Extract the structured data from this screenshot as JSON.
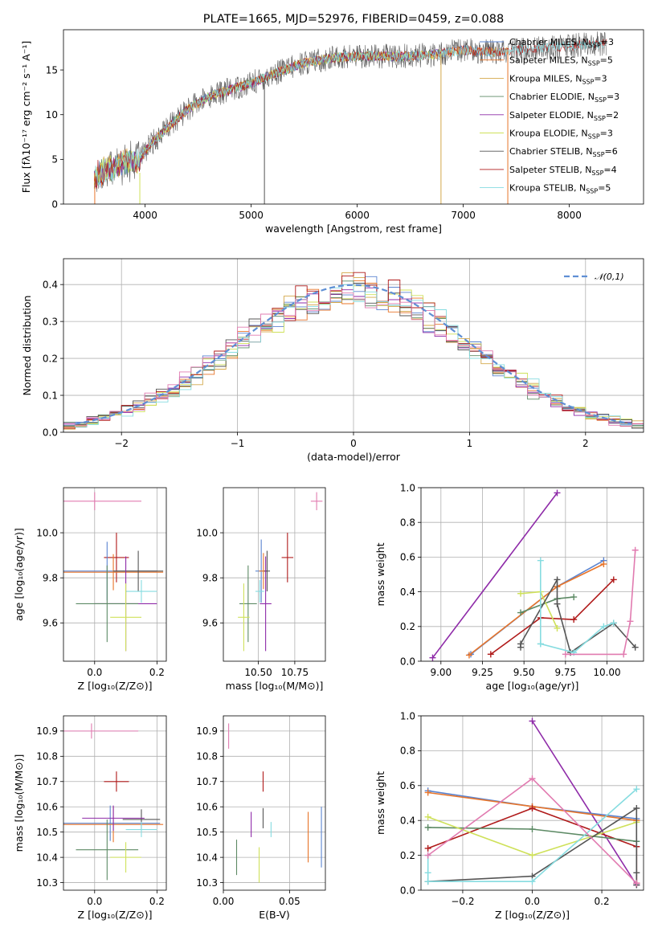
{
  "title": "PLATE=1665, MJD=52976, FIBERID=0459, z=0.088",
  "colors": {
    "Chabrier MILES": "#5b84d0",
    "Salpeter MILES": "#e8752a",
    "Kroupa MILES": "#d4a84a",
    "Chabrier ELODIE": "#5d8a65",
    "Salpeter ELODIE": "#8e2aa8",
    "Kroupa ELODIE": "#cfe15a",
    "Chabrier STELIB": "#555555",
    "Salpeter STELIB": "#b01a1a",
    "Kroupa STELIB": "#86dce0",
    "extra": "#e17bb0"
  },
  "chart_data": [
    {
      "id": "spectrum",
      "type": "line",
      "xlabel": "wavelength [Angstrom, rest frame]",
      "ylabel": "Flux [fλ10⁻¹⁷ erg cm⁻² s⁻¹ A⁻¹]",
      "xlim": [
        3230,
        8700
      ],
      "ylim": [
        0,
        19.5
      ],
      "xticks": [
        "4000",
        "5000",
        "6000",
        "7000",
        "8000"
      ],
      "xtick_values": [
        4000,
        5000,
        6000,
        7000,
        8000
      ],
      "yticks": [
        "0",
        "5",
        "10",
        "15"
      ],
      "ytick_values": [
        0,
        5,
        10,
        15
      ],
      "legend": "top-right",
      "continuum": [
        [
          3520,
          3.0
        ],
        [
          3650,
          4.0
        ],
        [
          3800,
          4.6
        ],
        [
          3950,
          5.1
        ],
        [
          4050,
          6.7
        ],
        [
          4200,
          8.4
        ],
        [
          4400,
          10.6
        ],
        [
          4600,
          12.0
        ],
        [
          4800,
          12.8
        ],
        [
          5000,
          13.5
        ],
        [
          5200,
          14.5
        ],
        [
          5500,
          15.8
        ],
        [
          5800,
          16.4
        ],
        [
          6100,
          16.6
        ],
        [
          6400,
          16.5
        ],
        [
          6700,
          16.7
        ],
        [
          7000,
          17.2
        ],
        [
          7300,
          17.0
        ],
        [
          7600,
          17.3
        ],
        [
          7900,
          17.6
        ],
        [
          8200,
          17.9
        ],
        [
          8350,
          18.0
        ]
      ],
      "models": [
        {
          "name": "Chabrier MILES",
          "label": "Chabrier MILES, N",
          "sub": "SSP",
          "count": "=3",
          "x_max": 7420
        },
        {
          "name": "Salpeter MILES",
          "label": "Salpeter MILES, N",
          "sub": "SSP",
          "count": "=5",
          "x_max": 7420
        },
        {
          "name": "Kroupa MILES",
          "label": "Kroupa MILES, N",
          "sub": "SSP",
          "count": "=3",
          "x_max": 7420
        },
        {
          "name": "Chabrier ELODIE",
          "label": "Chabrier ELODIE, N",
          "sub": "SSP",
          "count": "=3",
          "x_max": 6800
        },
        {
          "name": "Salpeter ELODIE",
          "label": "Salpeter ELODIE, N",
          "sub": "SSP",
          "count": "=2",
          "x_max": 6800
        },
        {
          "name": "Kroupa ELODIE",
          "label": "Kroupa ELODIE, N",
          "sub": "SSP",
          "count": "=3",
          "x_max": 6800
        },
        {
          "name": "Chabrier STELIB",
          "label": "Chabrier STELIB, N",
          "sub": "SSP",
          "count": "=6",
          "x_max": 8350
        },
        {
          "name": "Salpeter STELIB",
          "label": "Salpeter STELIB, N",
          "sub": "SSP",
          "count": "=4",
          "x_max": 8350
        },
        {
          "name": "Kroupa STELIB",
          "label": "Kroupa STELIB, N",
          "sub": "SSP",
          "count": "=5",
          "x_max": 8350
        }
      ]
    },
    {
      "id": "residuals",
      "type": "histogram",
      "xlabel": "(data-model)/error",
      "ylabel": "Normed distribution",
      "xlim": [
        -2.5,
        2.5
      ],
      "ylim": [
        0,
        0.47
      ],
      "xticks": [
        "−2",
        "−1",
        "0",
        "1",
        "2"
      ],
      "xtick_values": [
        -2,
        -1,
        0,
        1,
        2
      ],
      "yticks": [
        "0.0",
        "0.1",
        "0.2",
        "0.3",
        "0.4"
      ],
      "ytick_values": [
        0,
        0.1,
        0.2,
        0.3,
        0.4
      ],
      "legend": "top-right",
      "legend_label": "𝒩(0,1)",
      "bin_width": 0.1
    },
    {
      "id": "age-vs-Z",
      "type": "errorbar",
      "xlabel": "Z [log₁₀(Z/Z⊙)]",
      "ylabel": "age  [log₁₀(age/yr)]",
      "xlim": [
        -0.1,
        0.23
      ],
      "ylim": [
        9.43,
        10.2
      ],
      "xticks": [
        "0.0",
        "0.2"
      ],
      "xtick_values": [
        0.0,
        0.2
      ],
      "yticks": [
        "9.6",
        "9.8",
        "10.0"
      ],
      "ytick_values": [
        9.6,
        9.8,
        10.0
      ],
      "points": [
        {
          "name": "extra",
          "x": 0.0,
          "y": 10.14,
          "xerr": 0.15,
          "yerr": 0.04
        },
        {
          "name": "Salpeter STELIB",
          "x": 0.07,
          "y": 9.89,
          "xerr": 0.04,
          "yerr": 0.11
        },
        {
          "name": "Chabrier MILES",
          "x": 0.04,
          "y": 9.83,
          "xerr": 0.16,
          "yerr": 0.13
        },
        {
          "name": "Salpeter MILES",
          "x": 0.06,
          "y": 9.825,
          "xerr": 0.16,
          "yerr": 0.08
        },
        {
          "name": "Chabrier STELIB",
          "x": 0.14,
          "y": 9.83,
          "xerr": 0.08,
          "yerr": 0.09
        },
        {
          "name": "Kroupa STELIB",
          "x": 0.15,
          "y": 9.74,
          "xerr": 0.05,
          "yerr": 0.05
        },
        {
          "name": "Salpeter ELODIE",
          "x": 0.1,
          "y": 9.685,
          "xerr": 0.1,
          "yerr": 0.21
        },
        {
          "name": "Chabrier ELODIE",
          "x": 0.04,
          "y": 9.685,
          "xerr": 0.1,
          "yerr": 0.17
        },
        {
          "name": "Kroupa ELODIE",
          "x": 0.1,
          "y": 9.625,
          "xerr": 0.05,
          "yerr": 0.15
        }
      ]
    },
    {
      "id": "age-vs-mass",
      "type": "errorbar",
      "xlabel": "mass [log₁₀(M/M⊙)]",
      "ylabel": "",
      "xlim": [
        10.26,
        10.96
      ],
      "ylim": [
        9.43,
        10.2
      ],
      "xticks": [
        "10.50",
        "10.75"
      ],
      "xtick_values": [
        10.5,
        10.75
      ],
      "yticks": [
        "9.6",
        "9.8",
        "10.0"
      ],
      "ytick_values": [
        9.6,
        9.8,
        10.0
      ],
      "points": [
        {
          "name": "extra",
          "x": 10.9,
          "y": 10.14,
          "xerr": 0.04,
          "yerr": 0.04
        },
        {
          "name": "Salpeter STELIB",
          "x": 10.7,
          "y": 9.89,
          "xerr": 0.04,
          "yerr": 0.11
        },
        {
          "name": "Chabrier MILES",
          "x": 10.52,
          "y": 9.83,
          "xerr": 0.04,
          "yerr": 0.14
        },
        {
          "name": "Salpeter MILES",
          "x": 10.535,
          "y": 9.83,
          "xerr": 0.03,
          "yerr": 0.08
        },
        {
          "name": "Chabrier STELIB",
          "x": 10.56,
          "y": 9.83,
          "xerr": 0.02,
          "yerr": 0.09
        },
        {
          "name": "Kroupa STELIB",
          "x": 10.51,
          "y": 9.74,
          "xerr": 0.03,
          "yerr": 0.05
        },
        {
          "name": "Salpeter ELODIE",
          "x": 10.55,
          "y": 9.685,
          "xerr": 0.04,
          "yerr": 0.21
        },
        {
          "name": "Chabrier ELODIE",
          "x": 10.43,
          "y": 9.685,
          "xerr": 0.06,
          "yerr": 0.17
        },
        {
          "name": "Kroupa ELODIE",
          "x": 10.4,
          "y": 9.625,
          "xerr": 0.04,
          "yerr": 0.15
        }
      ]
    },
    {
      "id": "mass-weight-vs-age",
      "type": "line",
      "xlabel": "age  [log₁₀(age/yr)]",
      "ylabel": "mass weight",
      "xlim": [
        8.88,
        10.22
      ],
      "ylim": [
        0,
        1
      ],
      "xticks": [
        "9.00",
        "9.25",
        "9.50",
        "9.75",
        "10.00"
      ],
      "xtick_values": [
        9.0,
        9.25,
        9.5,
        9.75,
        10.0
      ],
      "yticks": [
        "0.0",
        "0.2",
        "0.4",
        "0.6",
        "0.8",
        "1.0"
      ],
      "ytick_values": [
        0,
        0.2,
        0.4,
        0.6,
        0.8,
        1.0
      ],
      "series": [
        {
          "name": "Salpeter ELODIE",
          "x": [
            8.95,
            9.7
          ],
          "y": [
            0.02,
            0.97
          ]
        },
        {
          "name": "Chabrier MILES",
          "x": [
            9.18,
            9.7,
            9.98
          ],
          "y": [
            0.04,
            0.43,
            0.58
          ]
        },
        {
          "name": "Salpeter MILES",
          "x": [
            9.17,
            9.7,
            9.98
          ],
          "y": [
            0.035,
            0.43,
            0.56
          ]
        },
        {
          "name": "Salpeter STELIB",
          "x": [
            9.3,
            9.6,
            9.8,
            10.04
          ],
          "y": [
            0.04,
            0.25,
            0.24,
            0.47
          ]
        },
        {
          "name": "Chabrier ELODIE",
          "x": [
            9.48,
            9.7,
            9.8
          ],
          "y": [
            0.28,
            0.36,
            0.37
          ]
        },
        {
          "name": "Kroupa ELODIE",
          "x": [
            9.48,
            9.6,
            9.7
          ],
          "y": [
            0.39,
            0.4,
            0.19
          ]
        },
        {
          "name": "Chabrier STELIB",
          "x": [
            9.48,
            9.48,
            9.7,
            9.7,
            9.78,
            10.04,
            10.17
          ],
          "y": [
            0.08,
            0.1,
            0.47,
            0.33,
            0.05,
            0.22,
            0.08
          ]
        },
        {
          "name": "Kroupa STELIB",
          "x": [
            9.6,
            9.6,
            9.6,
            9.8,
            9.98,
            10.04
          ],
          "y": [
            0.58,
            0.1,
            0.1,
            0.05,
            0.2,
            0.22
          ]
        },
        {
          "name": "extra",
          "x": [
            9.75,
            10.1,
            10.14,
            10.17
          ],
          "y": [
            0.04,
            0.04,
            0.23,
            0.64
          ]
        }
      ]
    },
    {
      "id": "mass-vs-Z",
      "type": "errorbar",
      "xlabel": "Z [log₁₀(Z/Z⊙)]",
      "ylabel": "mass [log₁₀(M/M⊙)]",
      "xlim": [
        -0.1,
        0.23
      ],
      "ylim": [
        10.27,
        10.96
      ],
      "xticks": [
        "0.0",
        "0.2"
      ],
      "xtick_values": [
        0.0,
        0.2
      ],
      "yticks": [
        "10.3",
        "10.4",
        "10.5",
        "10.6",
        "10.7",
        "10.8",
        "10.9"
      ],
      "ytick_values": [
        10.3,
        10.4,
        10.5,
        10.6,
        10.7,
        10.8,
        10.9
      ],
      "points": [
        {
          "name": "extra",
          "x": -0.01,
          "y": 10.9,
          "xerr": 0.15,
          "yerr": 0.03
        },
        {
          "name": "Salpeter STELIB",
          "x": 0.07,
          "y": 10.7,
          "xerr": 0.04,
          "yerr": 0.04
        },
        {
          "name": "Chabrier MILES",
          "x": 0.05,
          "y": 10.535,
          "xerr": 0.16,
          "yerr": 0.07
        },
        {
          "name": "Salpeter MILES",
          "x": 0.06,
          "y": 10.53,
          "xerr": 0.16,
          "yerr": 0.07
        },
        {
          "name": "Chabrier STELIB",
          "x": 0.15,
          "y": 10.55,
          "xerr": 0.06,
          "yerr": 0.04
        },
        {
          "name": "Kroupa STELIB",
          "x": 0.15,
          "y": 10.51,
          "xerr": 0.05,
          "yerr": 0.03
        },
        {
          "name": "Salpeter ELODIE",
          "x": 0.06,
          "y": 10.555,
          "xerr": 0.1,
          "yerr": 0.05
        },
        {
          "name": "Chabrier ELODIE",
          "x": 0.04,
          "y": 10.43,
          "xerr": 0.1,
          "yerr": 0.12
        },
        {
          "name": "Kroupa ELODIE",
          "x": 0.1,
          "y": 10.4,
          "xerr": 0.05,
          "yerr": 0.06
        }
      ]
    },
    {
      "id": "mass-vs-ebv",
      "type": "errorbar",
      "xlabel": "E(B-V)",
      "ylabel": "",
      "xlim": [
        0,
        0.077
      ],
      "ylim": [
        10.27,
        10.96
      ],
      "xticks": [
        "0.00",
        "0.05"
      ],
      "xtick_values": [
        0.0,
        0.05
      ],
      "yticks": [
        "10.3",
        "10.4",
        "10.5",
        "10.6",
        "10.7",
        "10.8",
        "10.9"
      ],
      "ytick_values": [
        10.3,
        10.4,
        10.5,
        10.6,
        10.7,
        10.8,
        10.9
      ],
      "points": [
        {
          "name": "extra",
          "x": 0.004,
          "y": 10.88,
          "xerr": 0,
          "yerr": 0.05
        },
        {
          "name": "Salpeter STELIB",
          "x": 0.03,
          "y": 10.7,
          "xerr": 0,
          "yerr": 0.04
        },
        {
          "name": "Chabrier STELIB",
          "x": 0.03,
          "y": 10.555,
          "xerr": 0,
          "yerr": 0.04
        },
        {
          "name": "Salpeter ELODIE",
          "x": 0.021,
          "y": 10.53,
          "xerr": 0,
          "yerr": 0.05
        },
        {
          "name": "Kroupa STELIB",
          "x": 0.036,
          "y": 10.51,
          "xerr": 0,
          "yerr": 0.03
        },
        {
          "name": "Chabrier MILES",
          "x": 0.074,
          "y": 10.48,
          "xerr": 0,
          "yerr": 0.12
        },
        {
          "name": "Salpeter MILES",
          "x": 0.064,
          "y": 10.48,
          "xerr": 0,
          "yerr": 0.1
        },
        {
          "name": "Chabrier ELODIE",
          "x": 0.01,
          "y": 10.4,
          "xerr": 0,
          "yerr": 0.07
        },
        {
          "name": "Kroupa ELODIE",
          "x": 0.027,
          "y": 10.37,
          "xerr": 0,
          "yerr": 0.07
        }
      ]
    },
    {
      "id": "mass-weight-vs-Z",
      "type": "line",
      "xlabel": "Z [log₁₀(Z/Z⊙)]",
      "ylabel": "mass weight",
      "xlim": [
        -0.32,
        0.32
      ],
      "ylim": [
        0,
        1
      ],
      "xticks": [
        "−0.2",
        "0.0",
        "0.2"
      ],
      "xtick_values": [
        -0.2,
        0.0,
        0.2
      ],
      "yticks": [
        "0.0",
        "0.2",
        "0.4",
        "0.6",
        "0.8",
        "1.0"
      ],
      "ytick_values": [
        0,
        0.2,
        0.4,
        0.6,
        0.8,
        1.0
      ],
      "series": [
        {
          "name": "Salpeter ELODIE",
          "x": [
            0.0,
            0.3
          ],
          "y": [
            0.97,
            0.03
          ]
        },
        {
          "name": "Chabrier MILES",
          "x": [
            -0.3,
            0.0,
            0.3
          ],
          "y": [
            0.57,
            0.48,
            0.41
          ]
        },
        {
          "name": "Salpeter MILES",
          "x": [
            -0.3,
            0.0,
            0.3
          ],
          "y": [
            0.56,
            0.48,
            0.4
          ]
        },
        {
          "name": "Salpeter STELIB",
          "x": [
            -0.3,
            0.0,
            0.3,
            0.3
          ],
          "y": [
            0.24,
            0.47,
            0.25,
            0.04
          ]
        },
        {
          "name": "Chabrier ELODIE",
          "x": [
            -0.3,
            0.0,
            0.3
          ],
          "y": [
            0.36,
            0.35,
            0.28
          ]
        },
        {
          "name": "Kroupa ELODIE",
          "x": [
            -0.3,
            0.0,
            0.3
          ],
          "y": [
            0.42,
            0.2,
            0.39
          ]
        },
        {
          "name": "Chabrier STELIB",
          "x": [
            -0.3,
            0.0,
            0.3,
            0.3,
            0.3
          ],
          "y": [
            0.05,
            0.08,
            0.47,
            0.1,
            0.03
          ]
        },
        {
          "name": "Kroupa STELIB",
          "x": [
            -0.3,
            -0.3,
            -0.3,
            0.0,
            0.3
          ],
          "y": [
            0.2,
            0.1,
            0.05,
            0.05,
            0.58
          ]
        },
        {
          "name": "extra",
          "x": [
            -0.3,
            0.0,
            0.3
          ],
          "y": [
            0.2,
            0.64,
            0.04
          ]
        }
      ]
    }
  ]
}
